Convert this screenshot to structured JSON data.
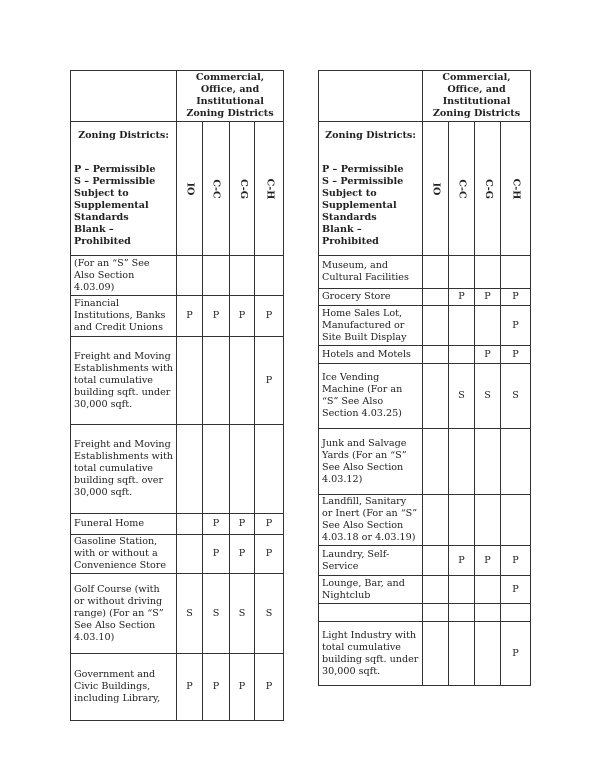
{
  "header": {
    "group": "Commercial, Office, and Institutional Zoning Districts",
    "legend_title": "Zoning Districts:",
    "legend_lines": [
      "P – Permissible",
      "S – Permissible Subject to Supplemental Standards",
      "Blank – Prohibited"
    ],
    "columns": [
      "IO",
      "C-C",
      "C-G",
      "C-H"
    ]
  },
  "left_rows": [
    {
      "label": "(For an “S” See Also Section 4.03.09)",
      "values": [
        "",
        "",
        "",
        ""
      ],
      "h": 40
    },
    {
      "label": "Financial Institutions, Banks and Credit Unions",
      "values": [
        "P",
        "P",
        "P",
        "P"
      ],
      "h": 41
    },
    {
      "label": "Freight and Moving Establishments with total cumulative building sqft. under 30,000 sqft.",
      "values": [
        "",
        "",
        "",
        "P"
      ],
      "h": 88
    },
    {
      "label": "Freight and Moving Establishments with total cumulative building sqft. over 30,000 sqft.",
      "values": [
        "",
        "",
        "",
        ""
      ],
      "h": 89
    },
    {
      "label": "Funeral Home",
      "values": [
        "",
        "P",
        "P",
        "P"
      ],
      "h": 21
    },
    {
      "label": "Gasoline Station, with or without a Convenience Store",
      "values": [
        "",
        "P",
        "P",
        "P"
      ],
      "h": 39
    },
    {
      "label": "Golf Course (with or without driving range) (For an “S” See Also Section 4.03.10)",
      "values": [
        "S",
        "S",
        "S",
        "S"
      ],
      "h": 80
    },
    {
      "label": "Government and Civic Buildings, including Library,",
      "values": [
        "P",
        "P",
        "P",
        "P"
      ],
      "h": 67
    }
  ],
  "right_rows": [
    {
      "label": "Museum, and Cultural Facilities",
      "values": [
        "",
        "",
        "",
        ""
      ],
      "h": 33
    },
    {
      "label": "Grocery Store",
      "values": [
        "",
        "P",
        "P",
        "P"
      ],
      "h": 17
    },
    {
      "label": "Home Sales Lot, Manufactured or Site Built Display",
      "values": [
        "",
        "",
        "",
        "P"
      ],
      "h": 40
    },
    {
      "label": "Hotels and Motels",
      "values": [
        "",
        "",
        "P",
        "P"
      ],
      "h": 18
    },
    {
      "label": "Ice Vending Machine (For an “S” See Also Section 4.03.25)",
      "values": [
        "",
        "S",
        "S",
        "S"
      ],
      "h": 65
    },
    {
      "label": "Junk and Salvage Yards (For an “S” See Also Section 4.03.12)",
      "values": [
        "",
        "",
        "",
        ""
      ],
      "h": 66
    },
    {
      "label": "Landfill, Sanitary or Inert (For an “S” See Also Section 4.03.18 or 4.03.19)",
      "values": [
        "",
        "",
        "",
        ""
      ],
      "h": 50
    },
    {
      "label": "Laundry, Self-Service",
      "values": [
        "",
        "P",
        "P",
        "P"
      ],
      "h": 30
    },
    {
      "label": "Lounge, Bar, and Nightclub",
      "values": [
        "",
        "",
        "",
        "P"
      ],
      "h": 28
    },
    {
      "label": "",
      "values": [
        "",
        "",
        "",
        ""
      ],
      "h": 18
    },
    {
      "label": "Light Industry with total cumulative building sqft. under 30,000 sqft.",
      "values": [
        "",
        "",
        "",
        "P"
      ],
      "h": 64
    }
  ]
}
